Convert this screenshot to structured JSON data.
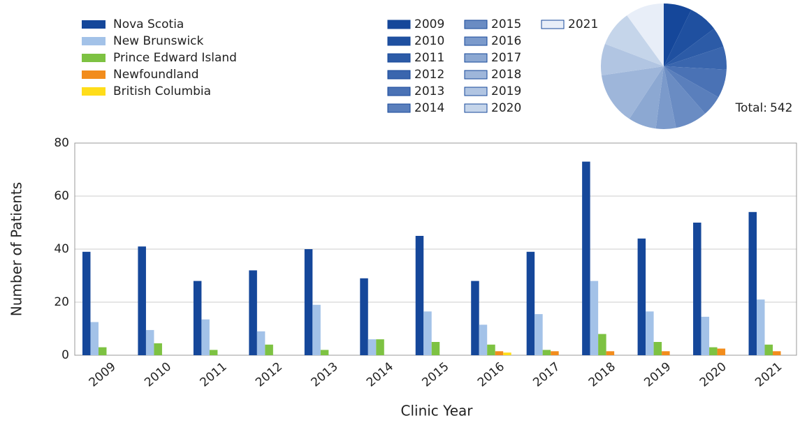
{
  "chart_data": [
    {
      "type": "bar",
      "y_label": "Number of Patients",
      "x_label": "Clinic Year",
      "categories": [
        "2009",
        "2010",
        "2011",
        "2012",
        "2013",
        "2014",
        "2015",
        "2016",
        "2017",
        "2018",
        "2019",
        "2020",
        "2021"
      ],
      "series": [
        {
          "name": "Nova Scotia",
          "color": "#15479a",
          "values": [
            39,
            41,
            28,
            32,
            40,
            29,
            45,
            28,
            39,
            73,
            44,
            50,
            54
          ]
        },
        {
          "name": "New Brunswick",
          "color": "#a3c2e8",
          "values": [
            12.5,
            9.5,
            13.5,
            9,
            19,
            6,
            16.5,
            11.5,
            15.5,
            28,
            16.5,
            14.5,
            21
          ]
        },
        {
          "name": "Prince Edward Island",
          "color": "#7dc242",
          "values": [
            3,
            4.5,
            2,
            4,
            2,
            6,
            5,
            4,
            2,
            8,
            5,
            3,
            4
          ]
        },
        {
          "name": "Newfoundland",
          "color": "#f28c1c",
          "values": [
            0,
            0,
            0,
            0,
            0,
            0,
            0,
            1.5,
            1.5,
            1.5,
            1.5,
            2.5,
            1.5
          ]
        },
        {
          "name": "British Columbia",
          "color": "#ffdd1a",
          "values": [
            0,
            0,
            0,
            0,
            0,
            0,
            0,
            1,
            0,
            0,
            0,
            0,
            0
          ]
        }
      ],
      "ylim": [
        0,
        80
      ],
      "yticks": [
        0,
        20,
        40,
        60,
        80
      ],
      "grid": true
    },
    {
      "type": "pie",
      "categories": [
        "2009",
        "2010",
        "2011",
        "2012",
        "2013",
        "2014",
        "2015",
        "2016",
        "2017",
        "2018",
        "2019",
        "2020",
        "2021"
      ],
      "values": [
        39,
        41,
        28,
        32,
        40,
        29,
        45,
        28,
        39,
        73,
        44,
        50,
        54
      ],
      "colors": [
        "#15479a",
        "#1f50a0",
        "#2c5ba7",
        "#3a66ae",
        "#4a72b5",
        "#5a7fbc",
        "#6a8cc3",
        "#7b9acb",
        "#8ca8d2",
        "#9eb6da",
        "#b1c5e2",
        "#c5d5ea",
        "#e8eef8"
      ],
      "total_label": "Total:",
      "total": 542
    }
  ]
}
